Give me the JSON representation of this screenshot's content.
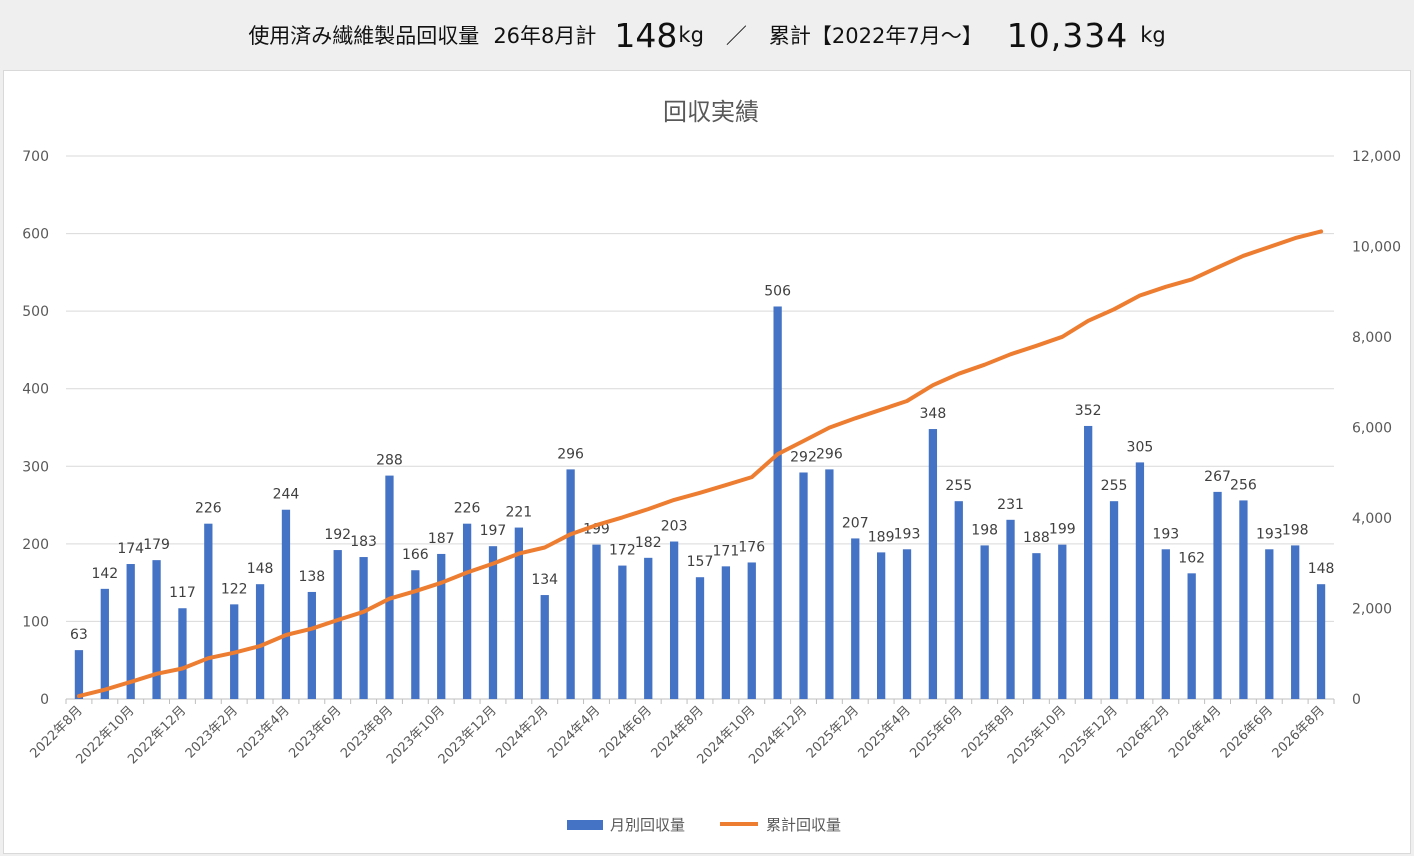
{
  "banner": {
    "label": "使用済み繊維製品回収量",
    "month_label": "26年8月計",
    "month_value": "148",
    "unit": "kg",
    "slash": "／",
    "cum_label": "累計【2022年7月～】",
    "total_value": "10,334",
    "total_unit": "kg"
  },
  "chart_data": {
    "type": "bar",
    "title": "回収実績",
    "xlabel": "",
    "ylabel": "",
    "ylim": [
      0,
      700
    ],
    "y2lim": [
      0,
      12000
    ],
    "yticks": [
      "0",
      "100",
      "200",
      "300",
      "400",
      "500",
      "600",
      "700"
    ],
    "y2ticks": [
      "0",
      "2,000",
      "4,000",
      "6,000",
      "8,000",
      "10,000",
      "12,000"
    ],
    "x_tick_labels": [
      "2022年8月",
      "2022年10月",
      "2022年12月",
      "2023年2月",
      "2023年4月",
      "2023年6月",
      "2023年8月",
      "2023年10月",
      "2023年12月",
      "2024年2月",
      "2024年4月",
      "2024年6月",
      "2024年8月",
      "2024年10月",
      "2024年12月",
      "2025年2月",
      "2025年4月",
      "2025年6月",
      "2025年8月",
      "2025年10月",
      "2025年12月",
      "2026年2月",
      "2026年4月",
      "2026年6月",
      "2026年8月"
    ],
    "series": [
      {
        "name": "月別回収量",
        "kind": "bar",
        "axis": "left",
        "color": "#4472c4",
        "values": [
          63,
          142,
          174,
          179,
          117,
          226,
          122,
          148,
          244,
          138,
          192,
          183,
          288,
          166,
          187,
          226,
          197,
          221,
          134,
          296,
          199,
          172,
          182,
          203,
          157,
          171,
          176,
          506,
          292,
          296,
          207,
          189,
          193,
          348,
          255,
          198,
          231,
          188,
          199,
          352,
          255,
          305,
          193,
          162,
          267,
          256,
          193,
          198,
          148
        ]
      },
      {
        "name": "累計回収量",
        "kind": "line",
        "axis": "right",
        "color": "#ed7d31",
        "values": [
          63,
          205,
          379,
          558,
          675,
          901,
          1023,
          1171,
          1415,
          1553,
          1745,
          1928,
          2216,
          2382,
          2569,
          2795,
          2992,
          3213,
          3347,
          3643,
          3842,
          4014,
          4196,
          4399,
          4556,
          4727,
          4903,
          5409,
          5701,
          5997,
          6204,
          6393,
          6586,
          6934,
          7189,
          7387,
          7618,
          7806,
          8005,
          8357,
          8612,
          8917,
          9110,
          9272,
          9539,
          9795,
          9988,
          10186,
          10334
        ]
      }
    ],
    "legend_position": "bottom",
    "grid": true
  }
}
